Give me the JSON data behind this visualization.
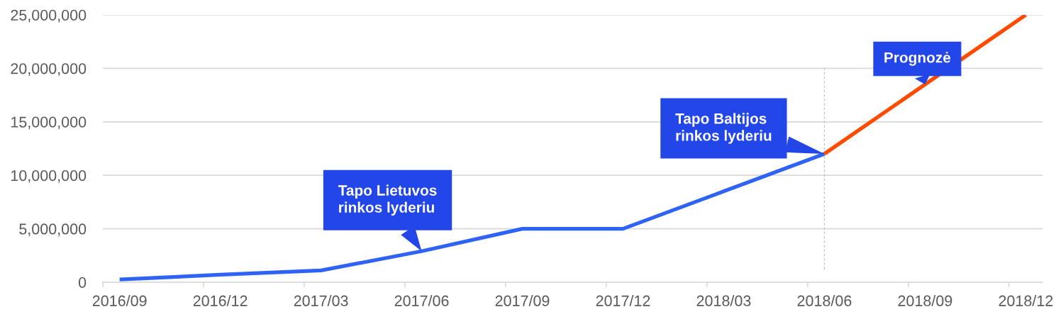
{
  "chart_data": {
    "type": "line",
    "categories": [
      "2016/09",
      "2016/12",
      "2017/03",
      "2017/06",
      "2017/09",
      "2017/12",
      "2018/03",
      "2018/06",
      "2018/09",
      "2018/12"
    ],
    "series": [
      {
        "color": "#2e63f5",
        "values": [
          250000,
          700000,
          1100000,
          2900000,
          5000000,
          5000000,
          8500000,
          12000000,
          null,
          null
        ]
      },
      {
        "color": "#ff4b00",
        "values": [
          null,
          null,
          null,
          null,
          null,
          null,
          null,
          12000000,
          18500000,
          25000000
        ]
      }
    ],
    "ylim": [
      0,
      25000000
    ],
    "yticks": [
      0,
      {
        "value": 5000000,
        "label": "5,000,000"
      },
      {
        "value": 10000000,
        "label": "10,000,000"
      },
      {
        "value": 15000000,
        "label": "15,000,000"
      },
      {
        "value": 20000000,
        "label": "20,000,000"
      },
      {
        "value": 25000000,
        "label": "25,000,000"
      }
    ],
    "grid": "y",
    "line_style": "solid",
    "ref_lines": [
      {
        "axis": "x",
        "value": "2018/06",
        "color": "#bfbfbf",
        "line_style": "dashed"
      }
    ],
    "annotations": [
      {
        "text": "Tapo Lietuvos\nrinkos lyderiu",
        "x": "2017/06",
        "y": 2900000
      },
      {
        "text": "Tapo Baltijos\nrinkos lyderiu",
        "x": "2018/06",
        "y": 12000000
      },
      {
        "text": "Prognozė",
        "x": "2018/09",
        "y": 18500000
      }
    ]
  }
}
